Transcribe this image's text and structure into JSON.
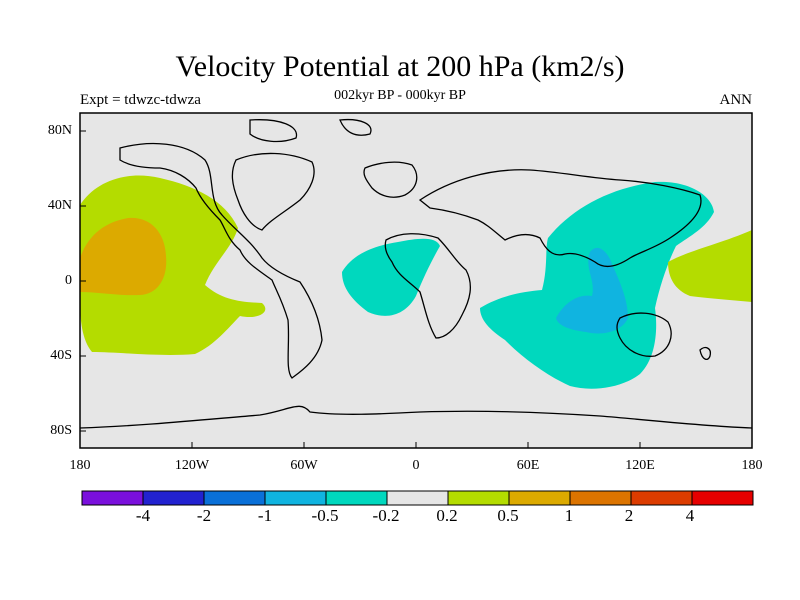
{
  "title": "Velocity Potential at 200 hPa (km2/s)",
  "subtitle": "002kyr BP - 000kyr BP",
  "left_label": "Expt = tdwzc-tdwza",
  "right_label": "ANN",
  "lat_labels": [
    "80N",
    "40N",
    "0",
    "40S",
    "80S"
  ],
  "lon_labels": [
    "180",
    "120W",
    "60W",
    "0",
    "60E",
    "120E",
    "180"
  ],
  "colorbar": {
    "labels": [
      "-4",
      "-2",
      "-1",
      "-0.5",
      "-0.2",
      "0.2",
      "0.5",
      "1",
      "2",
      "4"
    ],
    "colors": [
      "#7a10dc",
      "#2222d0",
      "#0a70d8",
      "#10b4e0",
      "#00d8be",
      "#e6e6e6",
      "#b4dc00",
      "#dcaa00",
      "#dc7400",
      "#dc3c00",
      "#e60000"
    ]
  },
  "map": {
    "background_color": "#e6e6e6",
    "regions": [
      {
        "name": "north-pacific-positive",
        "level": "0.2 to 0.5",
        "color": "#b4dc00"
      },
      {
        "name": "north-pacific-core",
        "level": "0.5 to 1",
        "color": "#dcaa00"
      },
      {
        "name": "atlantic-negative",
        "level": "-0.5 to -0.2",
        "color": "#00d8be"
      },
      {
        "name": "indian-ocean-negative",
        "level": "-0.5 to -0.2",
        "color": "#00d8be"
      },
      {
        "name": "maritime-continent-core",
        "level": "-1 to -0.5",
        "color": "#10b4e0"
      },
      {
        "name": "west-pacific-positive",
        "level": "0.2 to 0.5",
        "color": "#b4dc00"
      }
    ]
  }
}
